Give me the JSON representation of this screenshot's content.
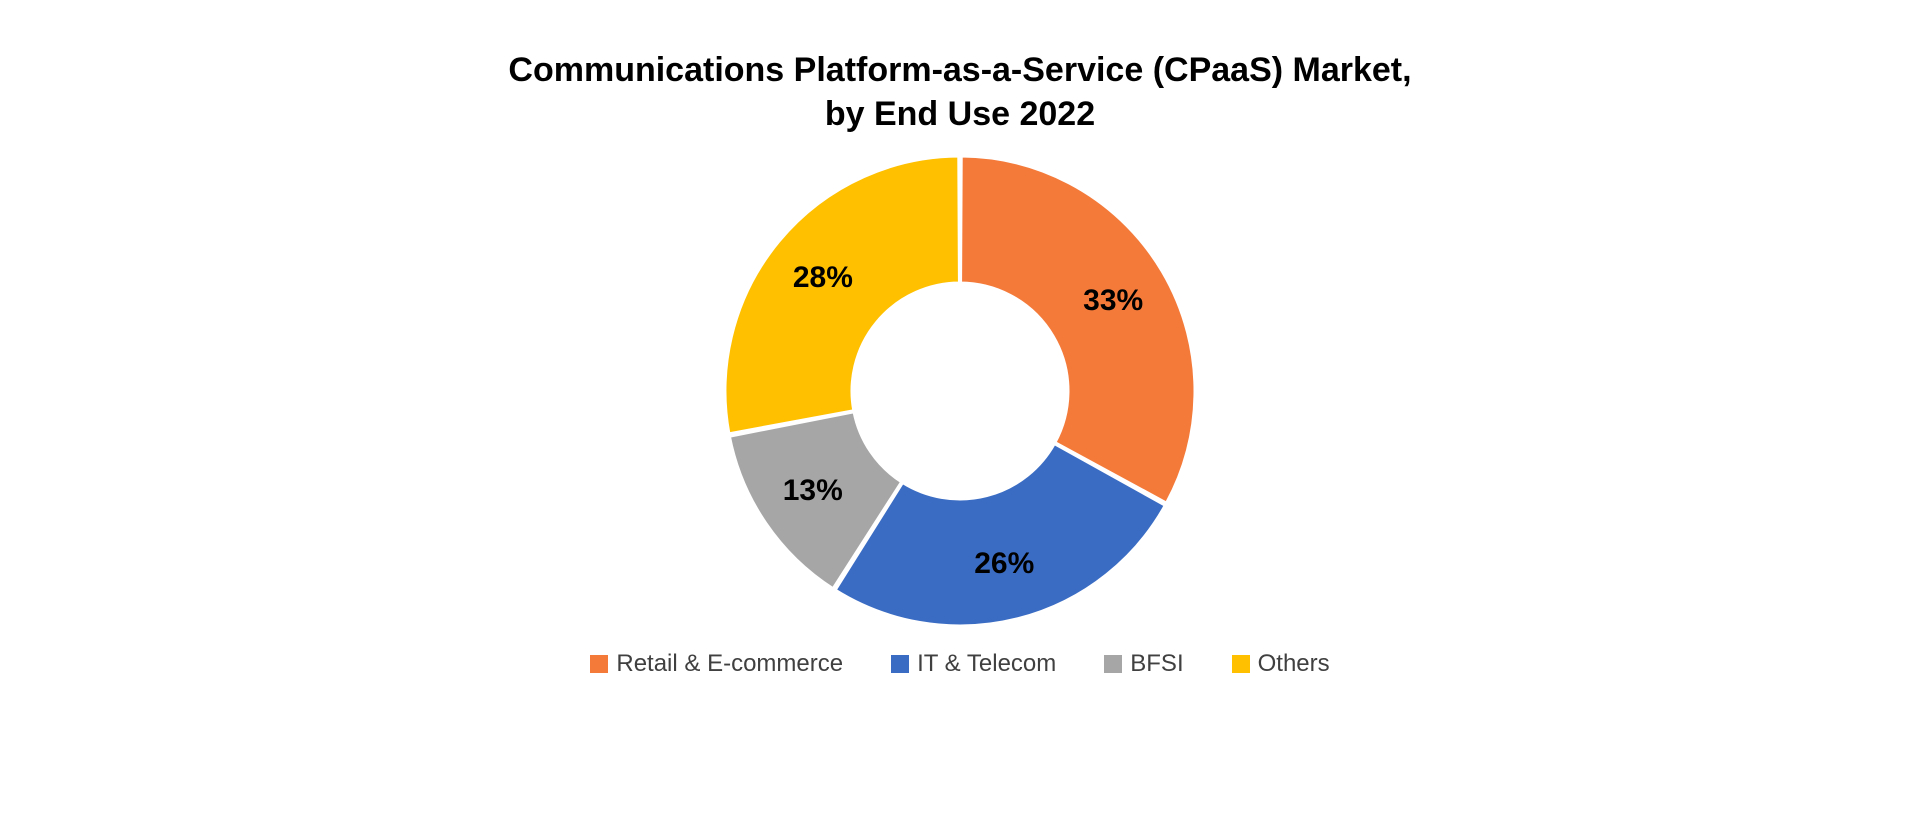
{
  "chart": {
    "type": "donut",
    "title": "Communications Platform-as-a-Service (CPaaS) Market,\nby End Use 2022",
    "title_fontsize": 34,
    "title_fontweight": 600,
    "title_color": "#000000",
    "background_color": "#ffffff",
    "outer_radius": 235,
    "inner_radius": 108,
    "start_angle_deg": 0,
    "direction": "clockwise",
    "slice_gap_deg": 0.6,
    "label_fontsize": 30,
    "label_fontweight": 700,
    "label_color": "#000000",
    "label_radius": 178,
    "slice_stroke": "#ffffff",
    "slice_stroke_width": 3,
    "legend": {
      "position": "bottom",
      "fontsize": 24,
      "swatch_size": 18,
      "item_gap": 48,
      "text_color": "#404040"
    },
    "slices": [
      {
        "name": "Retail & E-commerce",
        "value": 33,
        "display": "33%",
        "color": "#f47a3a"
      },
      {
        "name": "IT & Telecom",
        "value": 26,
        "display": "26%",
        "color": "#3a6cc4"
      },
      {
        "name": "BFSI",
        "value": 13,
        "display": "13%",
        "color": "#a6a6a6"
      },
      {
        "name": "Others",
        "value": 28,
        "display": "28%",
        "color": "#ffc000"
      }
    ]
  }
}
